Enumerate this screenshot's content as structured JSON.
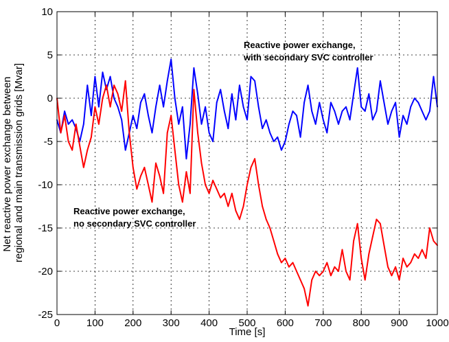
{
  "chart_data": {
    "type": "line",
    "title": "",
    "xlabel": "Time [s]",
    "ylabel": "Net reactive power exchange between\nregional and main transmission grids [Mvar]",
    "xlim": [
      0,
      1000
    ],
    "ylim": [
      -25,
      10
    ],
    "xticks": [
      0,
      100,
      200,
      300,
      400,
      500,
      600,
      700,
      800,
      900,
      1000
    ],
    "yticks": [
      10,
      5,
      0,
      -5,
      -10,
      -15,
      -20,
      -25
    ],
    "grid": true,
    "series": [
      {
        "color": "#0000ff",
        "x": [
          0,
          10,
          20,
          30,
          40,
          50,
          60,
          70,
          80,
          90,
          100,
          110,
          120,
          130,
          140,
          150,
          160,
          170,
          180,
          190,
          200,
          210,
          220,
          230,
          240,
          250,
          260,
          270,
          280,
          290,
          300,
          310,
          320,
          330,
          340,
          350,
          360,
          370,
          380,
          390,
          400,
          410,
          420,
          430,
          440,
          450,
          460,
          470,
          480,
          490,
          500,
          510,
          520,
          530,
          540,
          550,
          560,
          570,
          580,
          590,
          600,
          610,
          620,
          630,
          640,
          650,
          660,
          670,
          680,
          690,
          700,
          710,
          720,
          730,
          740,
          750,
          760,
          770,
          780,
          790,
          800,
          810,
          820,
          830,
          840,
          850,
          860,
          870,
          880,
          890,
          900,
          910,
          920,
          930,
          940,
          950,
          960,
          970,
          980,
          990,
          1000
        ],
        "values": [
          -2.5,
          -4,
          -1.5,
          -3,
          -2.5,
          -3.5,
          -5,
          -3,
          1.5,
          -2,
          2.5,
          -1,
          3,
          1,
          2.5,
          0,
          -1,
          -2.5,
          -6,
          -4,
          -2,
          -3.5,
          -0.5,
          0.5,
          -2,
          -4,
          -1,
          1.5,
          -1,
          2,
          4.5,
          0,
          -3,
          -1,
          -7,
          -3,
          3.5,
          0.5,
          -3,
          -1,
          -4,
          -5,
          -0.5,
          1,
          -1.5,
          -3.5,
          0.5,
          -2.5,
          1.5,
          -1,
          -2.5,
          2.5,
          2,
          -1,
          -3.5,
          -2.5,
          -4,
          -5,
          -4.5,
          -6,
          -5,
          -3,
          -1.5,
          -2,
          -4.5,
          -0.5,
          1.5,
          -1.5,
          -3,
          -0.5,
          -2.5,
          -4,
          -0.5,
          -1.5,
          -3,
          -1.5,
          -1,
          -2.5,
          0.5,
          3.5,
          -1,
          -1.5,
          0.5,
          -2.5,
          -1.5,
          2,
          -0.5,
          -3,
          -1.5,
          -0.5,
          -4.5,
          -2,
          -3,
          -1,
          0,
          -0.5,
          -1.5,
          -2.5,
          -1.5,
          2.5,
          -1
        ]
      },
      {
        "color": "#ff0000",
        "x": [
          0,
          10,
          20,
          30,
          40,
          50,
          60,
          70,
          80,
          90,
          100,
          110,
          120,
          130,
          140,
          150,
          160,
          170,
          180,
          190,
          200,
          210,
          220,
          230,
          240,
          250,
          260,
          270,
          280,
          290,
          300,
          310,
          320,
          330,
          340,
          350,
          360,
          370,
          380,
          390,
          400,
          410,
          420,
          430,
          440,
          450,
          460,
          470,
          480,
          490,
          500,
          510,
          520,
          530,
          540,
          550,
          560,
          570,
          580,
          590,
          600,
          610,
          620,
          630,
          640,
          650,
          660,
          670,
          680,
          690,
          700,
          710,
          720,
          730,
          740,
          750,
          760,
          770,
          780,
          790,
          800,
          810,
          820,
          830,
          840,
          850,
          860,
          870,
          880,
          890,
          900,
          910,
          920,
          930,
          940,
          950,
          960,
          970,
          980,
          990,
          1000
        ],
        "values": [
          0,
          -4,
          -2,
          -5,
          -6,
          -3,
          -5.5,
          -8,
          -6,
          -4.5,
          -1,
          -3,
          0,
          1.5,
          -1,
          1.5,
          0.5,
          -1.5,
          2,
          -4,
          -8,
          -10.5,
          -9,
          -8,
          -10,
          -12,
          -7.5,
          -9,
          -11,
          -4,
          -2,
          -6,
          -10,
          -12,
          -8.5,
          -11,
          1,
          -4,
          -7.5,
          -10,
          -11,
          -9.5,
          -10.5,
          -11.5,
          -11,
          -12.5,
          -11,
          -13,
          -14,
          -12.5,
          -10,
          -8,
          -7,
          -10,
          -12.5,
          -14,
          -15,
          -16.5,
          -18,
          -19,
          -18.5,
          -19.5,
          -19,
          -20,
          -21,
          -22,
          -24,
          -21,
          -20,
          -20.5,
          -20,
          -19,
          -20.5,
          -19.5,
          -20,
          -17.5,
          -20,
          -21,
          -16.5,
          -14.5,
          -18.5,
          -21,
          -18,
          -16,
          -14,
          -14.5,
          -17,
          -19.5,
          -20.5,
          -19.5,
          -21,
          -18.5,
          -19.5,
          -19,
          -18,
          -18.5,
          -17.5,
          -18.5,
          -15,
          -16.5,
          -17
        ]
      }
    ],
    "annotations": [
      {
        "id": "blue",
        "lines": [
          "Reactive power exchange,",
          "with secondary SVC controller"
        ]
      },
      {
        "id": "red",
        "lines": [
          "Reactive power exchange,",
          "no secondary SVC controller"
        ]
      }
    ]
  }
}
